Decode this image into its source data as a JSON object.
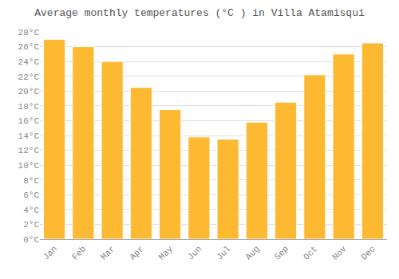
{
  "chart_data": {
    "type": "bar",
    "title": "Average monthly temperatures (°C ) in Villa Atamisqui",
    "categories": [
      "Jan",
      "Feb",
      "Mar",
      "Apr",
      "May",
      "Jun",
      "Jul",
      "Aug",
      "Sep",
      "Oct",
      "Nov",
      "Dec"
    ],
    "values": [
      27.0,
      26.0,
      24.0,
      20.5,
      17.5,
      13.8,
      13.5,
      15.8,
      18.5,
      22.2,
      25.0,
      26.5
    ],
    "color": "#FDB931",
    "ylim": [
      0,
      28
    ],
    "yticks": [
      {
        "value": 0,
        "label": "0°C"
      },
      {
        "value": 2,
        "label": "2°C"
      },
      {
        "value": 4,
        "label": "4°C"
      },
      {
        "value": 6,
        "label": "6°C"
      },
      {
        "value": 8,
        "label": "8°C"
      },
      {
        "value": 10,
        "label": "10°C"
      },
      {
        "value": 12,
        "label": "12°C"
      },
      {
        "value": 14,
        "label": "14°C"
      },
      {
        "value": 16,
        "label": "16°C"
      },
      {
        "value": 18,
        "label": "18°C"
      },
      {
        "value": 20,
        "label": "20°C"
      },
      {
        "value": 22,
        "label": "22°C"
      },
      {
        "value": 24,
        "label": "24°C"
      },
      {
        "value": 26,
        "label": "26°C"
      },
      {
        "value": 28,
        "label": "28°C"
      }
    ],
    "grid": true
  }
}
